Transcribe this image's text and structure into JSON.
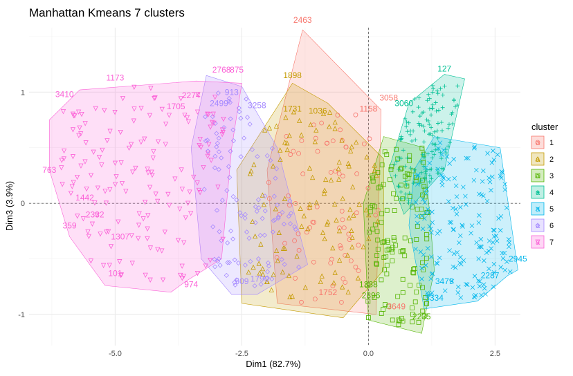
{
  "chart_data": {
    "type": "scatter",
    "title": "Manhattan Kmeans 7 clusters",
    "xlabel": "Dim1 (82.7%)",
    "ylabel": "Dim3 (3.9%)",
    "xlim": [
      -6.7,
      3.0
    ],
    "ylim": [
      -1.28,
      1.58
    ],
    "x_ticks": [
      -5.0,
      -2.5,
      0.0,
      2.5
    ],
    "x_tick_labels": [
      "-5.0",
      "-2.5",
      "0.0",
      "2.5"
    ],
    "y_ticks": [
      -1,
      0,
      1
    ],
    "y_tick_labels": [
      "-1",
      "0",
      "1"
    ],
    "grid": true,
    "legend": {
      "title": "cluster",
      "position": "right",
      "glyph": "a",
      "entries": [
        "1",
        "2",
        "3",
        "4",
        "5",
        "6",
        "7"
      ]
    },
    "colors": {
      "1": "#F8766D",
      "2": "#C49A00",
      "3": "#53B400",
      "4": "#00C094",
      "5": "#00B6EB",
      "6": "#A58AFF",
      "7": "#FB61D7"
    },
    "series": [
      {
        "name": "1",
        "hull": [
          [
            -1.3,
            1.56
          ],
          [
            0.25,
            0.84
          ],
          [
            0.15,
            -1.0
          ],
          [
            -1.8,
            -0.9
          ],
          [
            -2.0,
            0.3
          ]
        ],
        "x_range": [
          -2.0,
          0.2
        ],
        "y_range": [
          -0.9,
          0.8
        ],
        "n": 70,
        "labels": [
          {
            "x": -1.3,
            "y": 1.6,
            "text": "2463"
          },
          {
            "x": 0.4,
            "y": 0.9,
            "text": "3058"
          },
          {
            "x": 0.0,
            "y": 0.8,
            "text": "1158"
          },
          {
            "x": 0.55,
            "y": -0.98,
            "text": "3649"
          },
          {
            "x": -0.8,
            "y": -0.85,
            "text": "1752"
          }
        ]
      },
      {
        "name": "2",
        "hull": [
          [
            -1.5,
            1.08
          ],
          [
            -0.8,
            0.9
          ],
          [
            0.3,
            0.4
          ],
          [
            0.3,
            -0.6
          ],
          [
            -0.5,
            -1.03
          ],
          [
            -2.5,
            -0.9
          ],
          [
            -2.6,
            0.3
          ]
        ],
        "x_range": [
          -2.4,
          0.2
        ],
        "y_range": [
          -0.85,
          0.85
        ],
        "n": 110,
        "labels": [
          {
            "x": -1.5,
            "y": 1.1,
            "text": "1898"
          },
          {
            "x": -1.5,
            "y": 0.8,
            "text": "1731"
          },
          {
            "x": -1.0,
            "y": 0.78,
            "text": "1036"
          }
        ]
      },
      {
        "name": "3",
        "hull": [
          [
            0.3,
            0.6
          ],
          [
            1.1,
            0.5
          ],
          [
            1.3,
            -0.6
          ],
          [
            1.05,
            -1.17
          ],
          [
            0.0,
            -1.05
          ],
          [
            -0.1,
            0.0
          ]
        ],
        "x_range": [
          -0.1,
          1.2
        ],
        "y_range": [
          -1.1,
          0.5
        ],
        "n": 130,
        "labels": [
          {
            "x": 1.05,
            "y": -1.07,
            "text": "2235"
          },
          {
            "x": 0.05,
            "y": -0.88,
            "text": "2896"
          },
          {
            "x": 0.0,
            "y": -0.78,
            "text": "1338"
          }
        ]
      },
      {
        "name": "4",
        "hull": [
          [
            1.5,
            1.16
          ],
          [
            1.9,
            1.12
          ],
          [
            1.5,
            0.3
          ],
          [
            0.7,
            -0.1
          ],
          [
            0.4,
            0.3
          ],
          [
            0.8,
            0.9
          ]
        ],
        "x_range": [
          0.5,
          1.8
        ],
        "y_range": [
          0.0,
          1.1
        ],
        "n": 130,
        "labels": [
          {
            "x": 1.5,
            "y": 1.16,
            "text": "127"
          },
          {
            "x": 0.7,
            "y": 0.85,
            "text": "3060"
          }
        ]
      },
      {
        "name": "5",
        "hull": [
          [
            1.3,
            0.6
          ],
          [
            2.6,
            0.5
          ],
          [
            2.95,
            -0.6
          ],
          [
            2.75,
            -0.65
          ],
          [
            2.15,
            -0.88
          ],
          [
            1.1,
            -0.95
          ],
          [
            0.8,
            -0.2
          ],
          [
            0.9,
            0.3
          ]
        ],
        "x_range": [
          0.9,
          2.8
        ],
        "y_range": [
          -0.85,
          0.55
        ],
        "n": 170,
        "labels": [
          {
            "x": 2.95,
            "y": -0.55,
            "text": "2945"
          },
          {
            "x": 2.4,
            "y": -0.7,
            "text": "2287"
          },
          {
            "x": 1.5,
            "y": -0.75,
            "text": "3479"
          },
          {
            "x": 1.3,
            "y": -0.9,
            "text": "3334"
          }
        ]
      },
      {
        "name": "6",
        "hull": [
          [
            -3.2,
            1.15
          ],
          [
            -2.5,
            1.05
          ],
          [
            -1.8,
            0.5
          ],
          [
            -1.2,
            -0.55
          ],
          [
            -2.2,
            -0.82
          ],
          [
            -2.7,
            -0.82
          ],
          [
            -3.3,
            -0.5
          ],
          [
            -3.5,
            0.5
          ]
        ],
        "x_range": [
          -3.3,
          -1.3
        ],
        "y_range": [
          -0.75,
          1.0
        ],
        "n": 110,
        "labels": [
          {
            "x": -2.7,
            "y": 0.95,
            "text": "913"
          },
          {
            "x": -2.5,
            "y": -0.75,
            "text": "509"
          },
          {
            "x": -2.15,
            "y": -0.73,
            "text": "1790"
          },
          {
            "x": -2.95,
            "y": 0.85,
            "text": "2499"
          },
          {
            "x": -2.2,
            "y": 0.83,
            "text": "3258"
          }
        ]
      },
      {
        "name": "7",
        "hull": [
          [
            -6.3,
            0.75
          ],
          [
            -5.7,
            1.02
          ],
          [
            -3.4,
            1.1
          ],
          [
            -2.5,
            1.08
          ],
          [
            -2.7,
            0.5
          ],
          [
            -2.9,
            -0.5
          ],
          [
            -3.6,
            -0.7
          ],
          [
            -3.9,
            -0.8
          ],
          [
            -5.2,
            -0.74
          ],
          [
            -5.9,
            -0.3
          ],
          [
            -6.3,
            0.3
          ]
        ],
        "x_range": [
          -6.1,
          -2.8
        ],
        "y_range": [
          -0.72,
          1.05
        ],
        "n": 160,
        "labels": [
          {
            "x": -5.0,
            "y": 1.08,
            "text": "1173"
          },
          {
            "x": -6.0,
            "y": 0.93,
            "text": "3410"
          },
          {
            "x": -3.5,
            "y": 0.92,
            "text": "2274"
          },
          {
            "x": -3.8,
            "y": 0.82,
            "text": "1705"
          },
          {
            "x": -2.9,
            "y": 1.15,
            "text": "2768"
          },
          {
            "x": -2.6,
            "y": 1.15,
            "text": "875"
          },
          {
            "x": -6.3,
            "y": 0.25,
            "text": "763"
          },
          {
            "x": -5.6,
            "y": 0.0,
            "text": "1442"
          },
          {
            "x": -5.9,
            "y": -0.25,
            "text": "359"
          },
          {
            "x": -5.0,
            "y": -0.68,
            "text": "101"
          },
          {
            "x": -3.5,
            "y": -0.78,
            "text": "974"
          },
          {
            "x": -4.9,
            "y": -0.35,
            "text": "1307"
          },
          {
            "x": -5.4,
            "y": -0.15,
            "text": "2332"
          }
        ]
      }
    ]
  }
}
